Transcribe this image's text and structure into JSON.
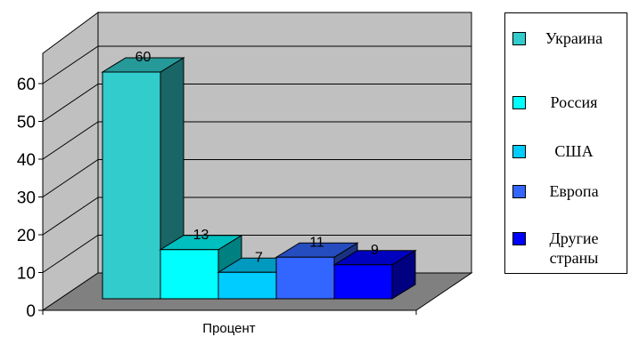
{
  "chart_data": {
    "type": "bar",
    "categories": [
      "Процент"
    ],
    "series": [
      {
        "name": "Украина",
        "values": [
          60
        ],
        "color": "#33CCCC"
      },
      {
        "name": "Россия",
        "values": [
          13
        ],
        "color": "#00FFFF"
      },
      {
        "name": "США",
        "values": [
          7
        ],
        "color": "#00CCFF"
      },
      {
        "name": "Европа",
        "values": [
          11
        ],
        "color": "#3366FF"
      },
      {
        "name": "Другие страны",
        "values": [
          9
        ],
        "color": "#0000FF"
      }
    ],
    "yticks": [
      "0",
      "10",
      "20",
      "30",
      "40",
      "50",
      "60"
    ],
    "ylim": [
      0,
      68
    ],
    "data_labels": [
      "60",
      "13",
      "7",
      "11",
      "9"
    ],
    "grid": true,
    "legend": "right",
    "three_d": true
  }
}
